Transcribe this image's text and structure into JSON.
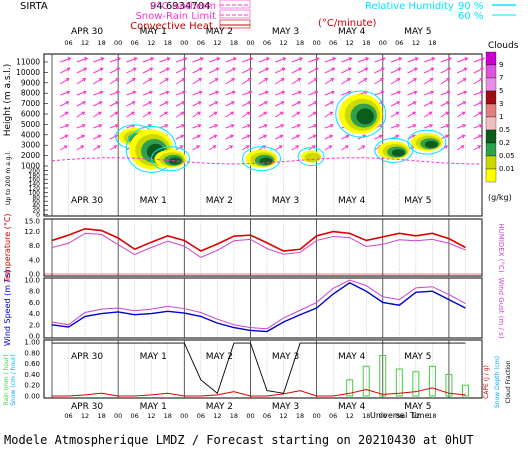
{
  "header": {
    "station": "SIRTA",
    "coord": "94.6934704",
    "legend_lines": [
      {
        "label": "0°C isotherm",
        "color": "#ff33cc",
        "dash": "dashed"
      },
      {
        "label": "Snow-Rain Limit",
        "color": "#ff33cc",
        "dash": "dashed"
      },
      {
        "label": "Convective Heat.",
        "color": "#cc0000",
        "dash": "solid"
      }
    ],
    "conv_unit": "(°C/minute)",
    "rh_label": "Relative Humidity",
    "rh_values": [
      "90 %",
      "60 %"
    ],
    "rh_colors": [
      "#00e5ff",
      "#00e5ff"
    ]
  },
  "days": [
    "APR 30",
    "MAY 1",
    "MAY 2",
    "MAY 3",
    "MAY 4",
    "MAY 5"
  ],
  "hour_ticks": [
    "06",
    "12",
    "18",
    "00",
    "06",
    "12",
    "18",
    "00",
    "06",
    "12",
    "18",
    "00",
    "06",
    "12",
    "18",
    "00",
    "06",
    "12",
    "18",
    "00",
    "06",
    "12",
    "18"
  ],
  "cloud_panel": {
    "ylabel": "Height (m a.s.l.)",
    "ylabel_low": "Up to 200 m a.g.l.",
    "yticks": [
      "11000",
      "10000",
      "9000",
      "8000",
      "7000",
      "6000",
      "5000",
      "4000",
      "3000",
      "2000",
      "1000",
      "200",
      "180",
      "160",
      "140",
      "120",
      "100",
      "80",
      "60",
      "40",
      "20",
      "0"
    ],
    "colorbar_title": "Clouds",
    "colorbar_unit": "(g/kg)",
    "colorbar_ticks": [
      "9",
      "7",
      "5",
      "3",
      "1",
      "0.5",
      "0.2",
      "0.05",
      "0.01"
    ],
    "colorbar_colors": [
      "#cc00cc",
      "#dd55dd",
      "#e590e5",
      "#a01010",
      "#e08080",
      "#f0c0c0",
      "#0c5d1c",
      "#2ea050",
      "#ccd900",
      "#ffff00"
    ]
  },
  "temp_panel": {
    "ylabel": "Temperature (°C)",
    "ylabel_right": "HUMIDEX (°C)",
    "yticks": [
      "15.0",
      "12.0",
      "8.0",
      "4.0",
      "0.0"
    ]
  },
  "wind_panel": {
    "ylabel": "Wind Speed (m / s)",
    "ylabel_right": "Wind Gust (m / s)",
    "yticks": [
      "10.0",
      "8.0",
      "6.0",
      "4.0",
      "2.0",
      "0.0"
    ]
  },
  "precip_panel": {
    "ylabel_left": "Rain (mm / hour)",
    "ylabel_left2": "Snow (cm / hour)",
    "ylabel_right": "CAPE (J / g)",
    "ylabel_right2": "Snow Depth (cm)",
    "ylabel_right3": "Cloud Fraction",
    "yticks": [
      "1.00",
      "0.80",
      "0.60",
      "0.40",
      "0.20",
      "0.00"
    ],
    "xlabel": "Universal Time"
  },
  "footer": "Modele Atmospherique LMDZ / Forecast starting on 20210430 at 0hUT",
  "chart_data": [
    {
      "type": "heatmap",
      "title": "",
      "description_series": "cloud condensed water (g/kg) by height and time",
      "cloud_blobs": [
        {
          "day_hour": 30,
          "height_m": 3800,
          "level": "0.2"
        },
        {
          "day_hour": 36,
          "height_m": 2600,
          "level": "0.5"
        },
        {
          "day_hour": 43,
          "height_m": 1700,
          "level": "0.2"
        },
        {
          "day_hour": 76,
          "height_m": 1700,
          "level": "0.2"
        },
        {
          "day_hour": 94,
          "height_m": 1900,
          "level": "0.05"
        },
        {
          "day_hour": 112,
          "height_m": 6000,
          "level": "0.5"
        },
        {
          "day_hour": 124,
          "height_m": 2500,
          "level": "0.2"
        },
        {
          "day_hour": 136,
          "height_m": 3300,
          "level": "0.2"
        }
      ]
    },
    {
      "type": "line",
      "title": "",
      "x": [
        0,
        6,
        12,
        18,
        24,
        30,
        36,
        42,
        48,
        54,
        60,
        66,
        72,
        78,
        84,
        90,
        96,
        102,
        108,
        114,
        120,
        126,
        132,
        138,
        144,
        150
      ],
      "series": [
        {
          "name": "Temperature",
          "color": "#dd0000",
          "values": [
            9.5,
            11.0,
            12.8,
            12.3,
            10.2,
            7.0,
            9.0,
            10.8,
            9.5,
            6.5,
            8.5,
            10.7,
            11.0,
            8.8,
            6.5,
            7.0,
            10.8,
            12.0,
            11.5,
            9.5,
            10.5,
            11.5,
            10.8,
            11.5,
            10.0,
            7.5
          ]
        },
        {
          "name": "HUMIDEX",
          "color": "#cc44cc",
          "values": [
            7.5,
            8.7,
            11.5,
            11.2,
            8.3,
            5.5,
            7.5,
            9.3,
            7.9,
            4.7,
            6.7,
            9.4,
            9.8,
            7.2,
            5.6,
            6.1,
            9.5,
            10.6,
            10.3,
            7.8,
            8.4,
            9.7,
            9.4,
            9.8,
            8.7,
            6.8
          ]
        }
      ],
      "ylim": [
        0,
        15
      ]
    },
    {
      "type": "line",
      "title": "",
      "x": [
        0,
        6,
        12,
        18,
        24,
        30,
        36,
        42,
        48,
        54,
        60,
        66,
        72,
        78,
        84,
        90,
        96,
        102,
        108,
        114,
        120,
        126,
        132,
        138,
        144,
        150
      ],
      "series": [
        {
          "name": "Wind Speed",
          "color": "#0000cc",
          "values": [
            2.0,
            1.6,
            3.5,
            4.0,
            4.3,
            3.8,
            4.0,
            4.4,
            4.1,
            3.5,
            2.3,
            1.5,
            1.0,
            0.8,
            2.5,
            3.8,
            5.0,
            7.5,
            9.5,
            8.0,
            6.0,
            5.5,
            7.8,
            8.0,
            6.5,
            5.0
          ]
        },
        {
          "name": "Wind Gust",
          "color": "#cc44cc",
          "values": [
            2.5,
            2.0,
            4.2,
            4.8,
            5.0,
            4.5,
            4.8,
            5.3,
            4.9,
            4.2,
            3.0,
            2.0,
            1.5,
            1.3,
            3.2,
            4.6,
            6.0,
            8.5,
            10.0,
            9.0,
            7.0,
            6.5,
            8.6,
            8.8,
            7.4,
            5.8
          ]
        }
      ],
      "ylim": [
        0,
        10
      ]
    },
    {
      "type": "line",
      "title": "",
      "x": [
        0,
        6,
        12,
        18,
        24,
        30,
        36,
        42,
        48,
        54,
        60,
        66,
        72,
        78,
        84,
        90,
        96,
        102,
        108,
        114,
        120,
        126,
        132,
        138,
        144,
        150
      ],
      "series": [
        {
          "name": "Cloud Fraction",
          "color": "#000000",
          "values": [
            0.98,
            0.98,
            0.98,
            0.98,
            0.98,
            0.98,
            0.98,
            0.98,
            0.98,
            0.3,
            0.05,
            0.98,
            0.98,
            0.1,
            0.05,
            0.98,
            0.98,
            0.98,
            0.98,
            0.98,
            0.98,
            0.98,
            0.98,
            0.98,
            0.98,
            0.98
          ]
        },
        {
          "name": "CAPE",
          "color": "#dd0000",
          "values": [
            0.0,
            0.0,
            0.02,
            0.05,
            0.0,
            0.0,
            0.02,
            0.05,
            0.0,
            0.0,
            0.02,
            0.08,
            0.0,
            0.0,
            0.04,
            0.1,
            0.0,
            0.0,
            0.05,
            0.12,
            0.03,
            0.05,
            0.08,
            0.15,
            0.05,
            0.02
          ]
        },
        {
          "name": "Rain",
          "color": "#44cc44",
          "values": [
            0,
            0,
            0,
            0,
            0,
            0,
            0,
            0,
            0,
            0,
            0,
            0,
            0,
            0,
            0,
            0,
            0,
            0,
            0.3,
            0.55,
            0.75,
            0.5,
            0.45,
            0.55,
            0.4,
            0.2
          ]
        }
      ],
      "ylim": [
        0,
        1
      ]
    }
  ]
}
